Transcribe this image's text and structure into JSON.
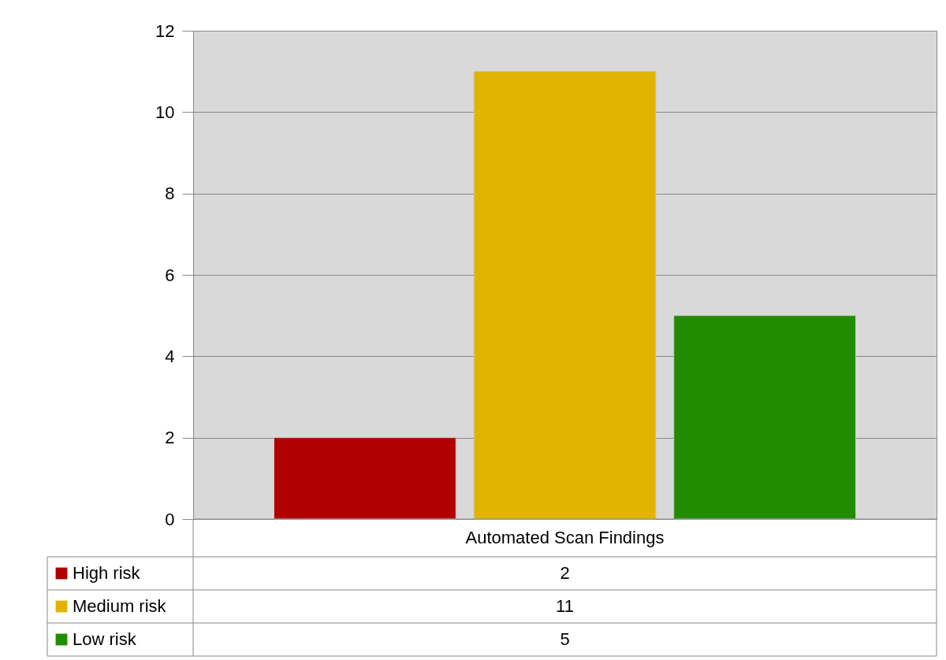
{
  "chart_data": {
    "type": "bar",
    "categories": [
      "Automated Scan Findings"
    ],
    "series": [
      {
        "name": "High risk",
        "color": "#b00000",
        "values": [
          2
        ]
      },
      {
        "name": "Medium risk",
        "color": "#e2b400",
        "values": [
          11
        ]
      },
      {
        "name": "Low risk",
        "color": "#228c00",
        "values": [
          5
        ]
      }
    ],
    "ylim": [
      0,
      12
    ],
    "yticks": [
      0,
      2,
      4,
      6,
      8,
      10,
      12
    ],
    "grid": "y",
    "legend": "bottom",
    "annotations": [
      "2",
      "11",
      "5"
    ]
  }
}
